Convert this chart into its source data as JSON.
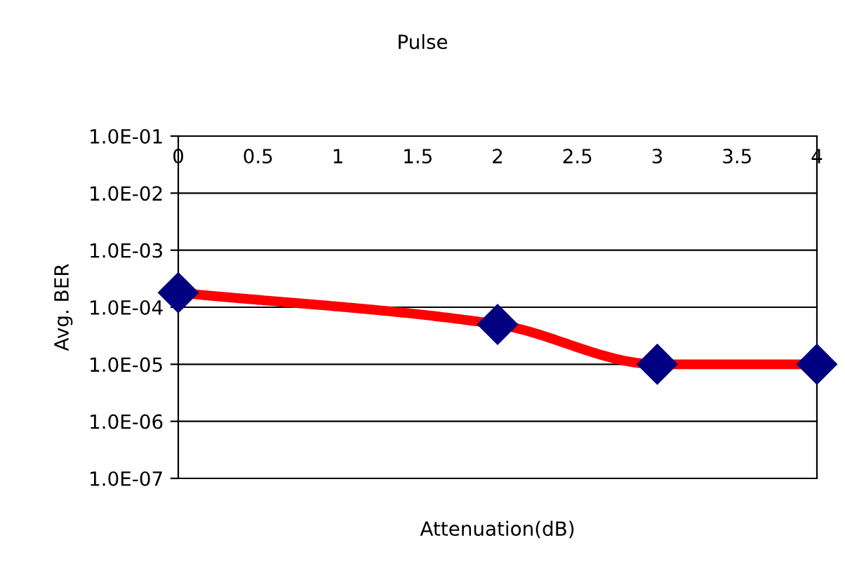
{
  "chart_data": {
    "type": "line",
    "title": "Pulse",
    "xlabel": "Attenuation(dB)",
    "ylabel": "Avg. BER",
    "series": [
      {
        "color": "#ff0000",
        "colors": [
          "#000080",
          "#000080",
          "#000080",
          "#000080"
        ],
        "x": [
          0,
          2,
          3,
          4
        ],
        "values": [
          0.00018,
          5e-05,
          1e-05,
          1e-05
        ]
      }
    ],
    "marker": "diamond",
    "line_style": "solid",
    "log": "y",
    "xlim": [
      0,
      4
    ],
    "xticks": [
      0,
      0.5,
      1,
      1.5,
      2,
      2.5,
      3,
      3.5,
      4
    ],
    "ylim": [
      1e-07,
      0.1
    ],
    "yticks": [
      {
        "value": 1e-07,
        "label": "1.0E-07"
      },
      {
        "value": 1e-06,
        "label": "1.0E-06"
      },
      {
        "value": 1e-05,
        "label": "1.0E-05"
      },
      {
        "value": 0.0001,
        "label": "1.0E-04"
      },
      {
        "value": 0.001,
        "label": "1.0E-03"
      },
      {
        "value": 0.01,
        "label": "1.0E-02"
      },
      {
        "value": 0.1,
        "label": "1.0E-01"
      }
    ],
    "grid": "y",
    "legend": false
  }
}
